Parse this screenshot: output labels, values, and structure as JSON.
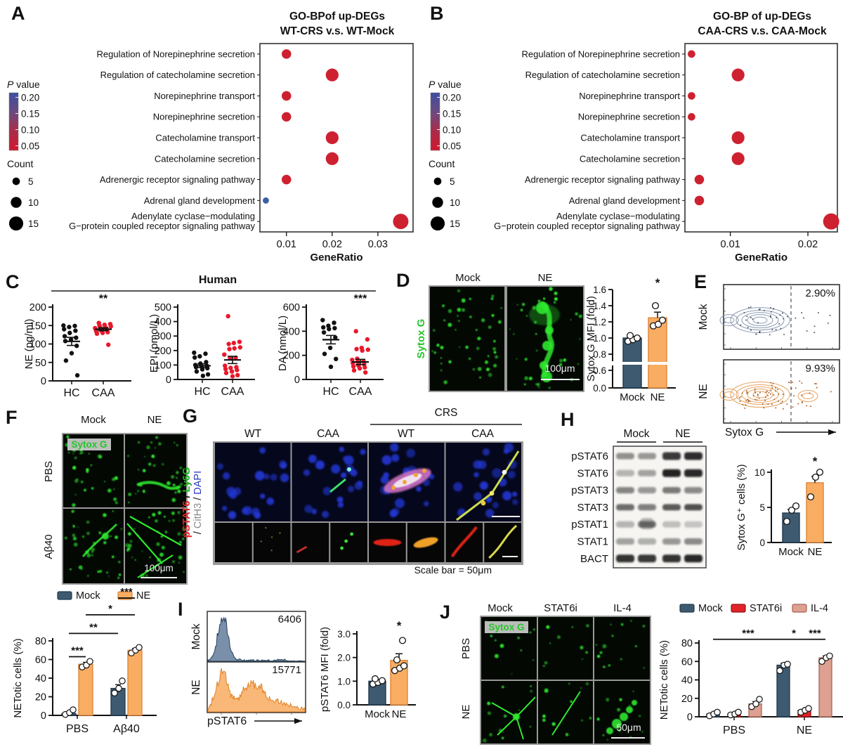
{
  "panels": {
    "a": {
      "letter": "A",
      "title1": "GO-BPof up-DEGs",
      "title2": "WT-CRS v.s. WT-Mock"
    },
    "b": {
      "letter": "B",
      "title1": "GO-BP of up-DEGs",
      "title2": "CAA-CRS v.s. CAA-Mock"
    },
    "c": {
      "letter": "C",
      "title": "Human"
    },
    "d": {
      "letter": "D",
      "col_labels": [
        "Mock",
        "NE"
      ],
      "side_label": "Sytox G",
      "scale_label": "100μm"
    },
    "e": {
      "letter": "E",
      "row_labels": [
        "Mock",
        "NE"
      ],
      "percents": [
        "2.90%",
        "9.93%"
      ],
      "xlabel": "Sytox G"
    },
    "f": {
      "letter": "F",
      "col_labels": [
        "Mock",
        "NE"
      ],
      "row_labels": [
        "PBS",
        "Aβ40"
      ],
      "chip": "Sytox G",
      "scale_label": "100μm"
    },
    "g": {
      "letter": "G",
      "group_label": "CRS",
      "col_labels": [
        "WT",
        "CAA",
        "WT",
        "CAA"
      ],
      "side_line1": [
        [
          "pSTAT6",
          "#e02424"
        ],
        [
          " / ",
          "#111111"
        ],
        [
          "Ly6G",
          "#1faf1f"
        ]
      ],
      "side_line2": [
        [
          "/ ",
          "#111111"
        ],
        [
          "CitH3",
          "#8a8a8a"
        ],
        [
          " / ",
          "#111111"
        ],
        [
          "DAPI",
          "#2d3bc0"
        ]
      ],
      "scale_note": "Scale bar = 50μm"
    },
    "h": {
      "letter": "H",
      "col_labels": [
        "Mock",
        "NE"
      ]
    },
    "i": {
      "letter": "I",
      "xlabel": "pSTAT6"
    },
    "j": {
      "letter": "J",
      "col_labels": [
        "Mock",
        "STAT6i",
        "IL-4"
      ],
      "row_labels": [
        "PBS",
        "NE"
      ],
      "chip": "Sytox G",
      "scale_label": "50μm"
    }
  },
  "go_legend": {
    "pvalue_title_italic": "P",
    "pvalue_title_rest": " value",
    "pvalue_ticks": [
      "0.20",
      "0.15",
      "0.10",
      "0.05"
    ],
    "count_title": "Count",
    "counts": [
      "5",
      "10",
      "15"
    ]
  },
  "chart_data": [
    {
      "id": "go_a",
      "type": "scatter",
      "subtype": "go-dotplot",
      "title": "GO-BPof up-DEGs WT-CRS v.s. WT-Mock",
      "xlabel": "GeneRatio",
      "xticks": [
        0.01,
        0.02,
        0.03
      ],
      "xlim": [
        0.0042,
        0.0377
      ],
      "categories": [
        "Regulation of Norepinephrine secretion",
        "Regulation of catecholamine secretion",
        "Norepinephrine transport",
        "Norepinephrine secretion",
        "Catecholamine transport",
        "Catecholamine secretion",
        "Adrenergic receptor signaling pathway",
        "Adrenal gland development",
        "Adenylate cyclase−modulating\nG−protein coupled receptor signaling pathway"
      ],
      "gene_ratio": [
        0.01,
        0.02,
        0.01,
        0.01,
        0.02,
        0.02,
        0.01,
        0.0055,
        0.035
      ],
      "count": [
        8,
        13,
        8,
        8,
        13,
        13,
        8,
        3,
        17
      ],
      "dot_color": [
        "red",
        "red",
        "red",
        "red",
        "red",
        "red",
        "red",
        "blue",
        "red"
      ]
    },
    {
      "id": "go_b",
      "type": "scatter",
      "subtype": "go-dotplot",
      "title": "GO-BP of up-DEGs CAA-CRS v.s. CAA-Mock",
      "xlabel": "GeneRatio",
      "xticks": [
        0.01,
        0.02
      ],
      "xlim": [
        0.00415,
        0.0238
      ],
      "categories": [
        "Regulation of Norepinephrine secretion",
        "Regulation of catecholamine secretion",
        "Norepinephrine transport",
        "Norepinephrine secretion",
        "Catecholamine transport",
        "Catecholamine secretion",
        "Adrenergic receptor signaling pathway",
        "Adrenal gland development",
        "Adenylate cyclase−modulating\nG−protein coupled receptor signaling pathway"
      ],
      "gene_ratio": [
        0.005,
        0.011,
        0.005,
        0.005,
        0.011,
        0.011,
        0.006,
        0.006,
        0.023
      ],
      "count": [
        5,
        13,
        5,
        5,
        13,
        13,
        8,
        8,
        18
      ],
      "dot_color": [
        "red",
        "red",
        "red",
        "red",
        "red",
        "red",
        "red",
        "red",
        "red"
      ]
    },
    {
      "id": "c_ne",
      "type": "scatter",
      "ylabel": "NE (pg/ml)",
      "ylim": [
        0,
        200
      ],
      "yticks": [
        0,
        50,
        100,
        150,
        200
      ],
      "groups": [
        "HC",
        "CAA"
      ],
      "sig": "**",
      "series": [
        {
          "name": "HC",
          "color": "#111111",
          "mean": 107,
          "sem": 11,
          "values": [
            150,
            149,
            146,
            140,
            136,
            130,
            121,
            117,
            112,
            108,
            95,
            75,
            55,
            15
          ]
        },
        {
          "name": "CAA",
          "color": "#e8192c",
          "mean": 140,
          "sem": 4,
          "values": [
            157,
            154,
            152,
            150,
            148,
            146,
            145,
            143,
            142,
            140,
            139,
            137,
            136,
            134,
            132,
            130,
            128,
            98
          ]
        }
      ]
    },
    {
      "id": "c_epi",
      "type": "scatter",
      "ylabel": "EPI (pmol/L)",
      "ylim": [
        0,
        500
      ],
      "yticks": [
        0,
        100,
        200,
        300,
        400,
        500
      ],
      "groups": [
        "HC",
        "CAA"
      ],
      "sig": null,
      "series": [
        {
          "name": "HC",
          "color": "#111111",
          "mean": 95,
          "sem": 13,
          "values": [
            185,
            178,
            160,
            152,
            120,
            110,
            100,
            95,
            90,
            85,
            78,
            70,
            55,
            35,
            25
          ]
        },
        {
          "name": "CAA",
          "color": "#e8192c",
          "mean": 135,
          "sem": 25,
          "values": [
            437,
            260,
            252,
            245,
            222,
            215,
            210,
            172,
            150,
            148,
            95,
            85,
            80,
            72,
            65,
            55,
            45,
            30,
            22
          ]
        }
      ]
    },
    {
      "id": "c_da",
      "type": "scatter",
      "ylabel": "DA (nmol/L)",
      "ylim": [
        0,
        600
      ],
      "yticks": [
        0,
        200,
        400,
        600
      ],
      "groups": [
        "HC",
        "CAA"
      ],
      "sig": "***",
      "series": [
        {
          "name": "HC",
          "color": "#111111",
          "mean": 330,
          "sem": 35,
          "values": [
            492,
            470,
            445,
            432,
            425,
            418,
            390,
            348,
            262,
            212,
            170,
            105
          ]
        },
        {
          "name": "CAA",
          "color": "#e8192c",
          "mean": 145,
          "sem": 22,
          "values": [
            400,
            332,
            262,
            252,
            247,
            240,
            172,
            162,
            152,
            145,
            135,
            125,
            115,
            108,
            100,
            92,
            75,
            58
          ]
        }
      ]
    },
    {
      "id": "d_bar",
      "type": "bar",
      "ylabel": "Sytox G MFI (fold)",
      "yticks": [
        0.0,
        0.6,
        0.8,
        1.0,
        1.2,
        1.4,
        1.6
      ],
      "broken_axis": true,
      "categories": [
        "Mock",
        "NE"
      ],
      "values": [
        1.0,
        1.25
      ],
      "sems": [
        0.02,
        0.07
      ],
      "colors": [
        "slate",
        "orange"
      ],
      "points": [
        [
          0.96,
          0.98,
          1.0,
          1.03
        ],
        [
          1.15,
          1.17,
          1.22,
          1.4
        ]
      ],
      "sig": {
        "index": 1,
        "label": "*"
      }
    },
    {
      "id": "h_bar",
      "type": "bar",
      "ylabel": "Sytox G⁺ cells (%)",
      "yticks": [
        0,
        5,
        10
      ],
      "categories": [
        "Mock",
        "NE"
      ],
      "values": [
        4.2,
        8.5
      ],
      "sems": [
        0.5,
        0.9
      ],
      "colors": [
        "slate",
        "orange"
      ],
      "points": [
        [
          3.0,
          4.6,
          5.2
        ],
        [
          6.5,
          9.3,
          10.0
        ]
      ],
      "sig": {
        "index": 1,
        "label": "*"
      }
    },
    {
      "id": "i_bar",
      "type": "bar",
      "ylabel": "pSTAT6 MFI (fold)",
      "yticks": [
        0,
        1,
        2,
        3
      ],
      "yticklabels": [
        "0.0",
        "1.0",
        "2.0",
        "3.0"
      ],
      "categories": [
        "Mock",
        "NE"
      ],
      "values": [
        1.0,
        1.88
      ],
      "sems": [
        0.06,
        0.28
      ],
      "colors": [
        "slate",
        "orange"
      ],
      "points": [
        [
          0.88,
          0.95,
          1.02,
          1.1
        ],
        [
          1.45,
          1.55,
          1.65,
          1.9,
          2.72
        ]
      ],
      "sig": {
        "index": 1,
        "label": "*"
      }
    },
    {
      "id": "f_bar",
      "type": "grouped_bar",
      "ylabel": "NETotic cells (%)",
      "yticks": [
        0,
        20,
        40,
        60,
        80
      ],
      "ylim": [
        0,
        80
      ],
      "groups": [
        "PBS",
        "Aβ40"
      ],
      "series": [
        {
          "name": "Mock",
          "color": "slate",
          "values": [
            2,
            29
          ],
          "sems": [
            1.5,
            4
          ],
          "points": [
            [
              1,
              3,
              6
            ],
            [
              24,
              29,
              37
            ]
          ]
        },
        {
          "name": "NE",
          "color": "orange",
          "values": [
            55,
            70
          ],
          "sems": [
            2,
            2
          ],
          "points": [
            [
              52,
              54,
              58
            ],
            [
              67,
              70,
              73
            ]
          ]
        }
      ],
      "sigs": [
        {
          "a": [
            0,
            0
          ],
          "b": [
            0,
            1
          ],
          "y": 63,
          "label": "***"
        },
        {
          "a": [
            0,
            0
          ],
          "b": [
            1,
            0
          ],
          "y": 88,
          "label": "**"
        },
        {
          "a": [
            0,
            1
          ],
          "b": [
            1,
            1
          ],
          "y": 108,
          "label": "*"
        },
        {
          "a": [
            1,
            0
          ],
          "b": [
            1,
            1
          ],
          "y": 126,
          "label": "***"
        }
      ]
    },
    {
      "id": "j_bar",
      "type": "grouped_bar",
      "ylabel": "NETotic cells (%)",
      "yticks": [
        0,
        20,
        40,
        60,
        80
      ],
      "ylim": [
        0,
        80
      ],
      "groups": [
        "PBS",
        "NE"
      ],
      "series": [
        {
          "name": "Mock",
          "color": "slate",
          "values": [
            3,
            56
          ],
          "sems": [
            1.2,
            2
          ],
          "points": [
            [
              1,
              3,
              5
            ],
            [
              50,
              56,
              57
            ]
          ]
        },
        {
          "name": "STAT6i",
          "color": "red",
          "values": [
            3,
            7
          ],
          "sems": [
            1,
            1.2
          ],
          "points": [
            [
              2,
              3,
              5
            ],
            [
              5,
              7,
              9
            ]
          ]
        },
        {
          "name": "IL-4",
          "color": "salmon",
          "values": [
            14,
            64
          ],
          "sems": [
            2.5,
            2
          ],
          "points": [
            [
              11,
              14,
              19
            ],
            [
              60,
              64,
              66
            ]
          ]
        }
      ],
      "sigs": [
        {
          "a": [
            0,
            0
          ],
          "b": [
            1,
            0
          ],
          "y": 84,
          "label": "***"
        },
        {
          "a": [
            1,
            0
          ],
          "b": [
            1,
            1
          ],
          "y": 84,
          "label": "*"
        },
        {
          "a": [
            1,
            1
          ],
          "b": [
            1,
            2
          ],
          "y": 84,
          "label": "***"
        }
      ]
    },
    {
      "id": "e_flow",
      "type": "scatter",
      "subtype": "flow-contour",
      "xlabel": "Sytox G",
      "plots": [
        {
          "label": "Mock",
          "percent": "2.90%",
          "color": "slate"
        },
        {
          "label": "NE",
          "percent": "9.93%",
          "color": "orange"
        }
      ]
    },
    {
      "id": "i_hist",
      "type": "area",
      "subtype": "flow-histogram",
      "xlabel": "pSTAT6",
      "plots": [
        {
          "label": "Mock",
          "mfi": "6406",
          "color": "slate"
        },
        {
          "label": "NE",
          "mfi": "15771",
          "color": "orange"
        }
      ]
    },
    {
      "id": "h_blot",
      "type": "table",
      "subtype": "western-blot",
      "lane_groups": [
        "Mock",
        "NE"
      ],
      "rows": [
        {
          "label": "pSTAT6",
          "bands": [
            0.45,
            0.42,
            0.85,
            0.9
          ]
        },
        {
          "label": "STAT6",
          "bands": [
            0.3,
            0.38,
            0.95,
            0.92
          ]
        },
        {
          "label": "pSTAT3",
          "bands": [
            0.5,
            0.42,
            0.55,
            0.48
          ]
        },
        {
          "label": "STAT3",
          "bands": [
            0.6,
            0.52,
            0.68,
            0.72
          ]
        },
        {
          "label": "pSTAT1",
          "bands": [
            0.3,
            0.55,
            0.22,
            0.2
          ]
        },
        {
          "label": "STAT1",
          "bands": [
            0.38,
            0.32,
            0.42,
            0.48
          ]
        },
        {
          "label": "BACT",
          "bands": [
            0.88,
            0.82,
            0.88,
            0.92
          ]
        }
      ]
    }
  ]
}
